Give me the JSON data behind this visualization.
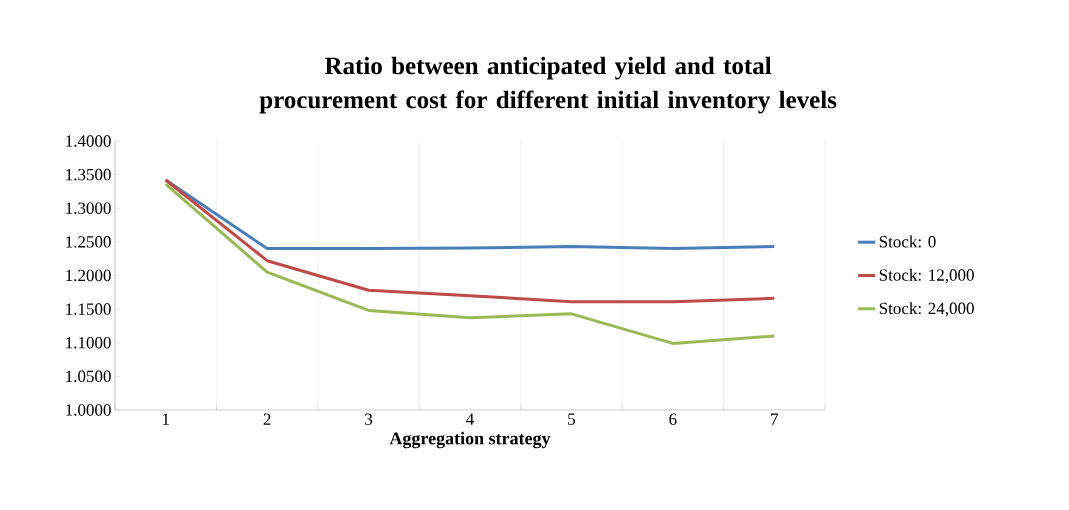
{
  "chart_data": {
    "type": "line",
    "title": "Ratio between anticipated yield and total procurement cost for different initial inventory levels",
    "xlabel": "Aggregation strategy",
    "categories": [
      "1",
      "2",
      "3",
      "4",
      "5",
      "6",
      "7"
    ],
    "series": [
      {
        "name": "Stock: 0",
        "color": "#4a7ebb",
        "values": [
          1.342,
          1.24,
          1.24,
          1.241,
          1.243,
          1.24,
          1.243
        ]
      },
      {
        "name": "Stock: 12,000",
        "color": "#be4b48",
        "values": [
          1.342,
          1.222,
          1.178,
          1.17,
          1.161,
          1.161,
          1.166
        ]
      },
      {
        "name": "Stock: 24,000",
        "color": "#98b954",
        "values": [
          1.336,
          1.205,
          1.148,
          1.137,
          1.143,
          1.099,
          1.11
        ]
      }
    ],
    "ylim": [
      1.0,
      1.4
    ],
    "yticks": [
      {
        "value": 1.0,
        "label": "1.0000"
      },
      {
        "value": 1.05,
        "label": "1.0500"
      },
      {
        "value": 1.1,
        "label": "1.1000"
      },
      {
        "value": 1.15,
        "label": "1.1500"
      },
      {
        "value": 1.2,
        "label": "1.2000"
      },
      {
        "value": 1.25,
        "label": "1.2500"
      },
      {
        "value": 1.3,
        "label": "1.3000"
      },
      {
        "value": 1.35,
        "label": "1.3500"
      },
      {
        "value": 1.4,
        "label": "1.4000"
      }
    ],
    "grid": "x",
    "legend": "right",
    "marker": "none",
    "line_style": "solid"
  }
}
